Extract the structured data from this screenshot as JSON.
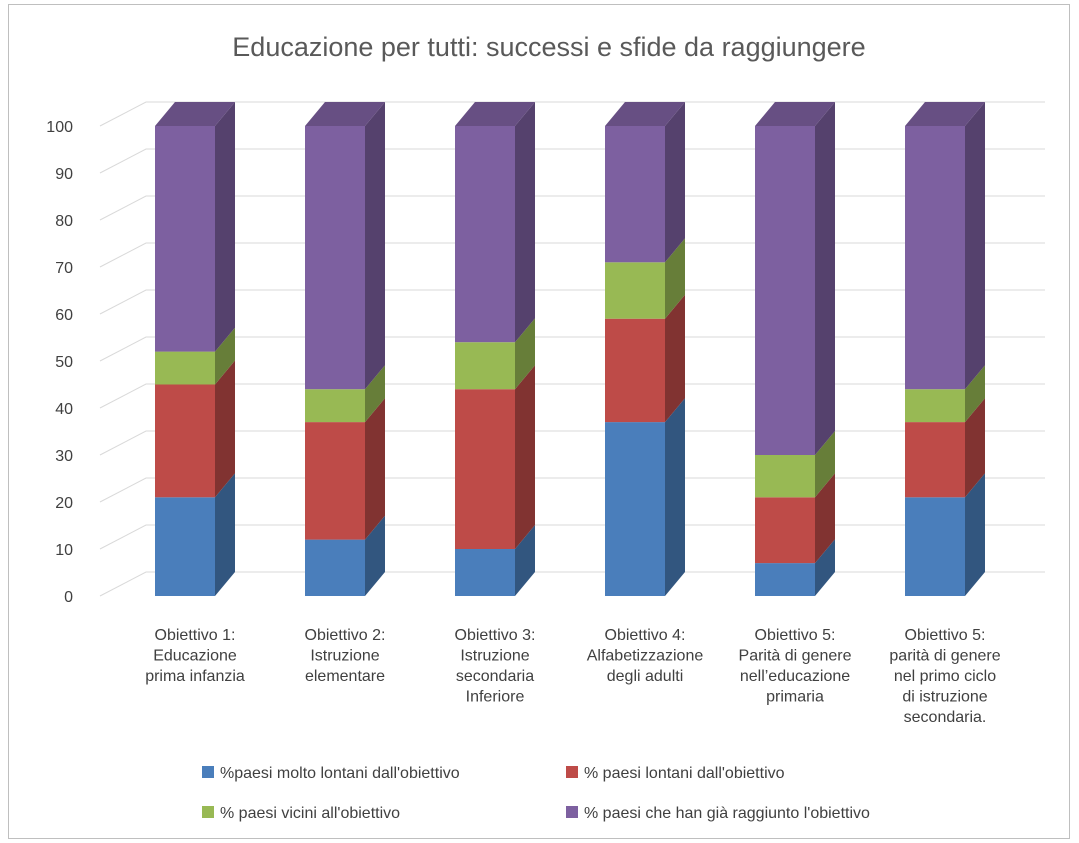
{
  "chart_data": {
    "type": "bar",
    "stacked": true,
    "three_d": true,
    "title": "Educazione per tutti: successi e sfide da raggiungere",
    "xlabel": "",
    "ylabel": "",
    "ylim": [
      0,
      100
    ],
    "yticks": [
      0,
      10,
      20,
      30,
      40,
      50,
      60,
      70,
      80,
      90,
      100
    ],
    "grid": true,
    "legend_position": "bottom",
    "categories": [
      [
        "Obiettivo 1:",
        "Educazione",
        "prima infanzia"
      ],
      [
        "Obiettivo 2:",
        "Istruzione",
        "elementare"
      ],
      [
        "Obiettivo 3:",
        "Istruzione",
        "secondaria",
        "Inferiore"
      ],
      [
        "Obiettivo 4:",
        "Alfabetizzazione",
        "degli adulti"
      ],
      [
        "Obiettivo 5:",
        "Parità di genere",
        "nell’educazione",
        "primaria"
      ],
      [
        "Obiettivo 5:",
        "parità di genere",
        "nel primo ciclo",
        "di istruzione",
        "secondaria."
      ]
    ],
    "series": [
      {
        "name": "%paesi molto lontani dall'obiettivo",
        "color": "#4a7ebb",
        "values": [
          21,
          12,
          10,
          37,
          7,
          21
        ]
      },
      {
        "name": "% paesi lontani dall'obiettivo",
        "color": "#be4b48",
        "values": [
          24,
          25,
          34,
          22,
          14,
          16
        ]
      },
      {
        "name": "% paesi vicini all'obiettivo",
        "color": "#98b954",
        "values": [
          7,
          7,
          10,
          12,
          9,
          7
        ]
      },
      {
        "name": "% paesi che han già raggiunto l'obiettivo",
        "color": "#7d60a0",
        "values": [
          48,
          56,
          46,
          29,
          70,
          56
        ]
      }
    ]
  }
}
